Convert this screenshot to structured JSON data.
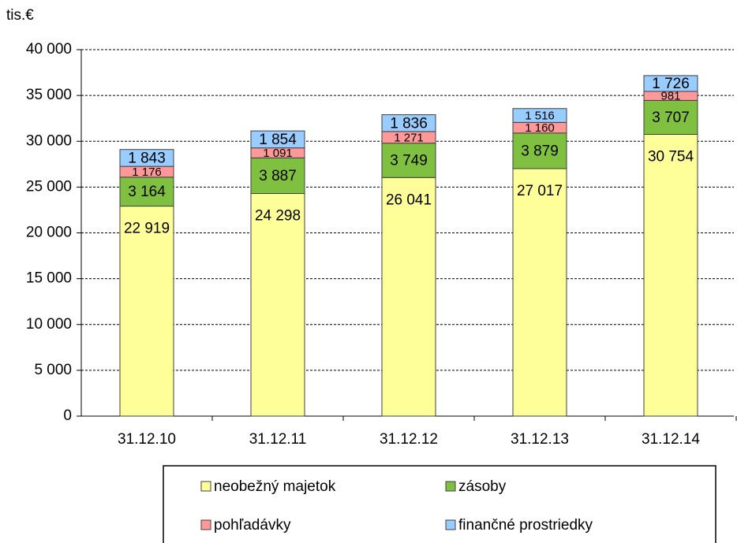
{
  "chart_data": {
    "type": "stacked_bar",
    "y_axis_label": "tis.€",
    "categories": [
      "31.12.10",
      "31.12.11",
      "31.12.12",
      "31.12.13",
      "31.12.14"
    ],
    "series": [
      {
        "name": "neobežný majetok",
        "color": "#ffff99",
        "values": [
          22919,
          24298,
          26041,
          27017,
          30754
        ],
        "value_labels": [
          "22 919",
          "24 298",
          "26 041",
          "27 017",
          "30 754"
        ]
      },
      {
        "name": "zásoby",
        "color": "#80c040",
        "values": [
          3164,
          3887,
          3749,
          3879,
          3707
        ],
        "value_labels": [
          "3 164",
          "3 887",
          "3 749",
          "3 879",
          "3 707"
        ]
      },
      {
        "name": "pohľadávky",
        "color": "#ff9999",
        "values": [
          1176,
          1091,
          1271,
          1160,
          981
        ],
        "value_labels": [
          "1 176",
          "1 091",
          "1 271",
          "1 160",
          "981"
        ]
      },
      {
        "name": "finančné prostriedky",
        "color": "#99ccff",
        "values": [
          1843,
          1854,
          1836,
          1516,
          1726
        ],
        "value_labels": [
          "1 843",
          "1 854",
          "1 836",
          "1 516",
          "1 726"
        ]
      }
    ],
    "ylim": [
      0,
      40000
    ],
    "yticks": [
      0,
      {
        "value": 5000,
        "label": "5 000"
      },
      {
        "value": 10000,
        "label": "10 000"
      },
      {
        "value": 15000,
        "label": "15 000"
      },
      {
        "value": 20000,
        "label": "20 000"
      },
      {
        "value": 25000,
        "label": "25 000"
      },
      {
        "value": 30000,
        "label": "30 000"
      },
      {
        "value": 35000,
        "label": "35 000"
      },
      {
        "value": 40000,
        "label": "40 000"
      }
    ],
    "grid": true
  }
}
